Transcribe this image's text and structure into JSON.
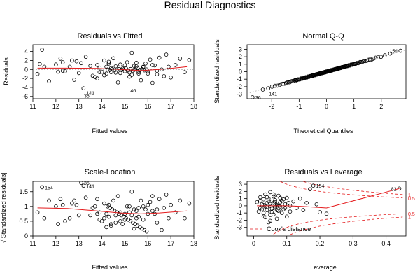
{
  "title": "Residual Diagnostics",
  "chart_data": [
    {
      "type": "scatter",
      "title": "Residuals vs Fitted",
      "xlabel": "Fitted values",
      "ylabel": "Residuals",
      "xlim": [
        11,
        18
      ],
      "ylim": [
        -6.5,
        5.5
      ],
      "xticks": [
        11,
        12,
        13,
        14,
        15,
        16,
        17,
        18
      ],
      "yticks": [
        -6,
        -4,
        -2,
        0,
        2,
        4
      ],
      "smooth_line": [
        [
          11.2,
          0.3
        ],
        [
          12.5,
          0.3
        ],
        [
          13.8,
          0.25
        ],
        [
          14.8,
          0.0
        ],
        [
          15.7,
          -0.25
        ],
        [
          16.5,
          0.0
        ],
        [
          17.7,
          0.6
        ]
      ],
      "reference_line": 0,
      "points": [
        [
          11.2,
          -1.0
        ],
        [
          11.3,
          1.2
        ],
        [
          11.4,
          4.4
        ],
        [
          11.5,
          0.6
        ],
        [
          11.7,
          -2.6
        ],
        [
          12.0,
          1.1
        ],
        [
          12.1,
          -0.5
        ],
        [
          12.2,
          2.4
        ],
        [
          12.3,
          1.6
        ],
        [
          12.3,
          -0.3
        ],
        [
          12.4,
          -0.4
        ],
        [
          12.6,
          0.6
        ],
        [
          12.7,
          2.0
        ],
        [
          12.8,
          -2.3
        ],
        [
          12.9,
          1.8
        ],
        [
          13.0,
          -0.8
        ],
        [
          13.1,
          1.4
        ],
        [
          13.2,
          -4.2
        ],
        [
          13.3,
          2.8
        ],
        [
          13.5,
          0.8
        ],
        [
          13.6,
          -1.4
        ],
        [
          13.7,
          -1.7
        ],
        [
          13.8,
          1.0
        ],
        [
          13.9,
          0.4
        ],
        [
          14.0,
          -0.5
        ],
        [
          14.1,
          2.0
        ],
        [
          14.2,
          -0.9
        ],
        [
          14.3,
          1.7
        ],
        [
          14.4,
          0.3
        ],
        [
          14.5,
          2.5
        ],
        [
          14.6,
          -0.7
        ],
        [
          14.7,
          -2.9
        ],
        [
          14.8,
          1.1
        ],
        [
          14.9,
          0.2
        ],
        [
          15.0,
          -0.4
        ],
        [
          15.1,
          1.6
        ],
        [
          15.2,
          -1.6
        ],
        [
          15.3,
          3.7
        ],
        [
          15.4,
          -0.1
        ],
        [
          15.5,
          0.7
        ],
        [
          15.6,
          -0.6
        ],
        [
          15.7,
          -2.4
        ],
        [
          15.8,
          0.5
        ],
        [
          15.9,
          1.3
        ],
        [
          16.0,
          -0.9
        ],
        [
          16.1,
          2.2
        ],
        [
          16.2,
          -3.0
        ],
        [
          16.3,
          0.9
        ],
        [
          16.4,
          -0.3
        ],
        [
          16.5,
          2.6
        ],
        [
          16.6,
          0.0
        ],
        [
          16.7,
          -1.5
        ],
        [
          16.8,
          3.3
        ],
        [
          16.9,
          0.6
        ],
        [
          17.0,
          -1.8
        ],
        [
          17.2,
          1.0
        ],
        [
          17.4,
          2.4
        ],
        [
          17.6,
          -0.6
        ],
        [
          17.8,
          2.1
        ],
        [
          14.25,
          0.0
        ],
        [
          14.35,
          -0.1
        ],
        [
          14.45,
          0.1
        ],
        [
          14.55,
          -0.2
        ],
        [
          14.65,
          0.0
        ],
        [
          14.75,
          0.1
        ],
        [
          14.85,
          -0.1
        ],
        [
          14.95,
          0.0
        ],
        [
          15.05,
          0.2
        ],
        [
          15.15,
          -0.2
        ],
        [
          15.25,
          0.1
        ],
        [
          15.35,
          -0.3
        ],
        [
          15.45,
          0.0
        ],
        [
          15.55,
          0.3
        ],
        [
          15.65,
          -0.1
        ],
        [
          15.75,
          0.1
        ],
        [
          15.85,
          -0.2
        ],
        [
          15.95,
          0.0
        ],
        [
          14.2,
          0.6
        ],
        [
          14.4,
          -0.6
        ],
        [
          14.6,
          0.7
        ],
        [
          14.8,
          -0.8
        ],
        [
          15.0,
          0.9
        ],
        [
          15.2,
          -0.7
        ],
        [
          15.4,
          0.8
        ],
        [
          15.6,
          -0.9
        ],
        [
          15.8,
          0.6
        ],
        [
          16.0,
          -0.5
        ],
        [
          14.1,
          -1.3
        ],
        [
          14.3,
          1.3
        ],
        [
          15.3,
          -1.2
        ],
        [
          15.5,
          1.5
        ],
        [
          16.2,
          1.0
        ],
        [
          16.4,
          -1.1
        ],
        [
          13.9,
          -0.6
        ],
        [
          13.8,
          -2.0
        ]
      ],
      "labeled_points": [
        {
          "label": "141",
          "x": 13.2,
          "y": -5.2
        },
        {
          "label": "36",
          "x": 13.1,
          "y": -5.8
        },
        {
          "label": "46",
          "x": 15.6,
          "y": -4.6
        }
      ]
    },
    {
      "type": "scatter",
      "title": "Normal Q-Q",
      "xlabel": "Theoretical Quantiles",
      "ylabel": "Standardized residuals",
      "xlim": [
        -2.9,
        2.9
      ],
      "ylim": [
        -3.6,
        3.6
      ],
      "xticks": [
        -2,
        -1,
        0,
        1,
        2
      ],
      "yticks": [
        -3,
        -2,
        -1,
        0,
        1,
        2,
        3
      ],
      "reference_line": [
        [
          -2.9,
          -2.9
        ],
        [
          2.9,
          2.9
        ]
      ],
      "points_source": "sorted_quantiles",
      "n": 150,
      "extremes": [
        {
          "x": -2.7,
          "y": -3.4
        },
        {
          "x": 2.7,
          "y": 2.8
        }
      ],
      "labeled_points": [
        {
          "label": "36",
          "x": -2.7,
          "y": -3.4
        },
        {
          "label": "141",
          "x": -2.2,
          "y": -2.9
        },
        {
          "label": "154",
          "x": 2.7,
          "y": 2.8
        }
      ]
    },
    {
      "type": "scatter",
      "title": "Scale-Location",
      "xlabel": "Fitted values",
      "ylabel": "√|Standardized residuals|",
      "xlim": [
        11,
        18
      ],
      "ylim": [
        0,
        1.85
      ],
      "xticks": [
        11,
        12,
        13,
        14,
        15,
        16,
        17,
        18
      ],
      "yticks": [
        0.0,
        0.5,
        1.0,
        1.5
      ],
      "smooth_line": [
        [
          11.2,
          0.95
        ],
        [
          12.5,
          0.93
        ],
        [
          13.8,
          0.85
        ],
        [
          14.8,
          0.78
        ],
        [
          15.7,
          0.75
        ],
        [
          16.5,
          0.78
        ],
        [
          17.7,
          0.85
        ]
      ],
      "points": [
        [
          11.2,
          0.8
        ],
        [
          11.4,
          1.65
        ],
        [
          11.5,
          0.6
        ],
        [
          11.7,
          1.2
        ],
        [
          12.0,
          1.0
        ],
        [
          12.1,
          0.4
        ],
        [
          12.2,
          1.25
        ],
        [
          12.3,
          1.05
        ],
        [
          12.4,
          0.5
        ],
        [
          12.6,
          0.6
        ],
        [
          12.7,
          1.1
        ],
        [
          12.8,
          1.2
        ],
        [
          12.9,
          1.05
        ],
        [
          13.0,
          0.7
        ],
        [
          13.1,
          1.8
        ],
        [
          13.2,
          1.7
        ],
        [
          13.3,
          1.3
        ],
        [
          13.5,
          0.7
        ],
        [
          13.6,
          0.95
        ],
        [
          13.7,
          1.0
        ],
        [
          13.8,
          0.75
        ],
        [
          13.9,
          0.55
        ],
        [
          14.0,
          0.5
        ],
        [
          14.1,
          1.1
        ],
        [
          14.2,
          0.75
        ],
        [
          14.3,
          1.05
        ],
        [
          14.4,
          0.4
        ],
        [
          14.5,
          1.2
        ],
        [
          14.6,
          0.7
        ],
        [
          14.7,
          1.35
        ],
        [
          14.8,
          0.8
        ],
        [
          14.9,
          0.4
        ],
        [
          15.0,
          0.55
        ],
        [
          15.1,
          1.0
        ],
        [
          15.2,
          1.0
        ],
        [
          15.3,
          1.5
        ],
        [
          15.4,
          0.25
        ],
        [
          15.5,
          0.6
        ],
        [
          15.6,
          0.65
        ],
        [
          15.7,
          1.2
        ],
        [
          15.8,
          0.55
        ],
        [
          15.9,
          0.9
        ],
        [
          16.0,
          0.75
        ],
        [
          16.1,
          1.15
        ],
        [
          16.2,
          1.35
        ],
        [
          16.3,
          0.75
        ],
        [
          16.4,
          0.45
        ],
        [
          16.5,
          1.25
        ],
        [
          16.6,
          0.2
        ],
        [
          16.7,
          0.95
        ],
        [
          16.8,
          1.4
        ],
        [
          16.9,
          0.6
        ],
        [
          17.0,
          1.05
        ],
        [
          17.2,
          0.8
        ],
        [
          17.4,
          1.2
        ],
        [
          17.6,
          0.6
        ],
        [
          17.8,
          1.1
        ],
        [
          14.25,
          1.0
        ],
        [
          14.35,
          0.95
        ],
        [
          14.45,
          0.9
        ],
        [
          14.55,
          0.85
        ],
        [
          14.65,
          0.8
        ],
        [
          14.75,
          0.75
        ],
        [
          14.85,
          0.7
        ],
        [
          14.95,
          0.65
        ],
        [
          15.05,
          0.6
        ],
        [
          15.15,
          0.55
        ],
        [
          15.25,
          0.5
        ],
        [
          15.35,
          0.45
        ],
        [
          15.45,
          0.4
        ],
        [
          15.55,
          0.35
        ],
        [
          15.65,
          0.3
        ],
        [
          15.75,
          0.25
        ],
        [
          15.85,
          0.2
        ],
        [
          15.95,
          0.15
        ],
        [
          14.2,
          0.3
        ],
        [
          14.4,
          0.35
        ],
        [
          14.6,
          0.45
        ],
        [
          14.8,
          0.5
        ],
        [
          15.0,
          0.75
        ],
        [
          15.2,
          0.8
        ],
        [
          15.4,
          0.9
        ],
        [
          15.6,
          0.95
        ],
        [
          15.8,
          1.0
        ],
        [
          16.0,
          1.05
        ],
        [
          14.1,
          0.6
        ],
        [
          14.3,
          0.65
        ],
        [
          15.3,
          0.7
        ],
        [
          15.5,
          0.85
        ],
        [
          16.2,
          0.85
        ],
        [
          16.4,
          0.9
        ],
        [
          13.9,
          0.8
        ],
        [
          13.8,
          1.25
        ]
      ],
      "labeled_points": [
        {
          "label": "154",
          "x": 11.4,
          "y": 1.65
        },
        {
          "label": "36",
          "x": 13.1,
          "y": 1.8
        },
        {
          "label": "141",
          "x": 13.2,
          "y": 1.7
        }
      ]
    },
    {
      "type": "scatter",
      "title": "Residuals vs Leverage",
      "xlabel": "Leverage",
      "ylabel": "Standardized residuals",
      "xlim": [
        -0.02,
        0.46
      ],
      "ylim": [
        -4.2,
        3.4
      ],
      "xticks": [
        0.0,
        0.1,
        0.2,
        0.3,
        0.4
      ],
      "yticks": [
        -3,
        -2,
        -1,
        0,
        1,
        2,
        3
      ],
      "smooth_line": [
        [
          0.01,
          0.0
        ],
        [
          0.05,
          0.0
        ],
        [
          0.1,
          0.0
        ],
        [
          0.15,
          -0.1
        ],
        [
          0.22,
          -0.3
        ],
        [
          0.44,
          2.4
        ]
      ],
      "cooks_contours": [
        "0.5",
        "1"
      ],
      "legend": "Cook's distance",
      "points": [
        [
          0.01,
          0.5
        ],
        [
          0.015,
          -0.8
        ],
        [
          0.02,
          1.2
        ],
        [
          0.02,
          -0.3
        ],
        [
          0.025,
          0.2
        ],
        [
          0.03,
          -1.5
        ],
        [
          0.03,
          0.9
        ],
        [
          0.035,
          -0.1
        ],
        [
          0.035,
          1.6
        ],
        [
          0.04,
          -0.6
        ],
        [
          0.04,
          0.4
        ],
        [
          0.045,
          -2.3
        ],
        [
          0.045,
          1.0
        ],
        [
          0.05,
          -0.9
        ],
        [
          0.05,
          0.0
        ],
        [
          0.05,
          1.9
        ],
        [
          0.055,
          -0.4
        ],
        [
          0.055,
          0.6
        ],
        [
          0.06,
          -1.2
        ],
        [
          0.06,
          1.3
        ],
        [
          0.065,
          -0.2
        ],
        [
          0.065,
          0.8
        ],
        [
          0.07,
          -1.8
        ],
        [
          0.07,
          0.3
        ],
        [
          0.075,
          -0.7
        ],
        [
          0.075,
          1.4
        ],
        [
          0.08,
          -0.1
        ],
        [
          0.08,
          0.5
        ],
        [
          0.085,
          -1.0
        ],
        [
          0.09,
          0.9
        ],
        [
          0.09,
          -0.5
        ],
        [
          0.095,
          0.2
        ],
        [
          0.1,
          -1.5
        ],
        [
          0.1,
          1.1
        ],
        [
          0.11,
          0.0
        ],
        [
          0.11,
          -0.8
        ],
        [
          0.12,
          0.6
        ],
        [
          0.13,
          -0.3
        ],
        [
          0.14,
          1.0
        ],
        [
          0.15,
          -0.6
        ],
        [
          0.16,
          0.4
        ],
        [
          0.17,
          2.3
        ],
        [
          0.18,
          2.8
        ],
        [
          0.19,
          0.2
        ],
        [
          0.2,
          -0.9
        ],
        [
          0.22,
          -1.1
        ],
        [
          0.44,
          2.4
        ],
        [
          0.025,
          -0.5
        ],
        [
          0.03,
          0.1
        ],
        [
          0.04,
          -0.2
        ],
        [
          0.05,
          0.3
        ],
        [
          0.06,
          -0.3
        ],
        [
          0.07,
          0.1
        ],
        [
          0.02,
          0.7
        ],
        [
          0.03,
          -1.0
        ],
        [
          0.04,
          1.2
        ],
        [
          0.05,
          -1.3
        ],
        [
          0.06,
          0.4
        ],
        [
          0.07,
          -0.6
        ],
        [
          0.08,
          1.1
        ],
        [
          0.045,
          0.6
        ],
        [
          0.055,
          -0.9
        ],
        [
          0.065,
          0.5
        ],
        [
          0.035,
          -1.6
        ],
        [
          0.05,
          -2.1
        ],
        [
          0.06,
          1.6
        ],
        [
          0.075,
          0.0
        ],
        [
          0.085,
          0.7
        ],
        [
          0.095,
          -0.3
        ],
        [
          0.105,
          0.4
        ]
      ],
      "labeled_points": [
        {
          "label": "154",
          "x": 0.18,
          "y": 2.8
        },
        {
          "label": "82",
          "x": 0.44,
          "y": 2.4
        }
      ]
    }
  ]
}
